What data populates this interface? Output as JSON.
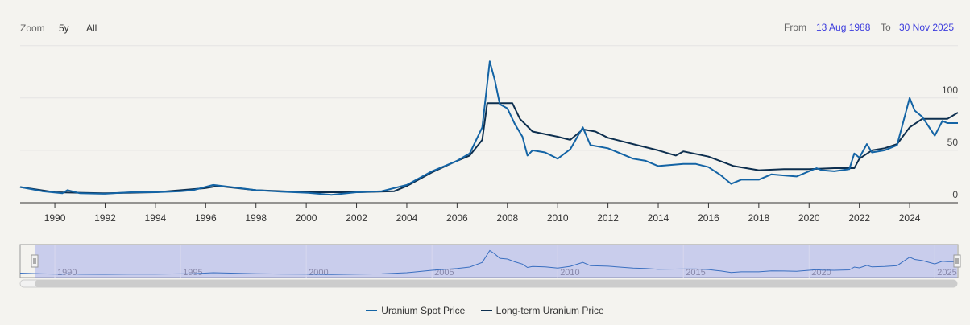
{
  "range_selector": {
    "zoom_label": "Zoom",
    "buttons": [
      "5y",
      "All"
    ],
    "from_label": "From",
    "from_value": "13 Aug 1988",
    "to_label": "To",
    "to_value": "30 Nov 2025"
  },
  "navigator": {
    "labels": [
      "1990",
      "1995",
      "2000",
      "2005",
      "2010",
      "2015",
      "2020",
      "2025"
    ]
  },
  "chart_data": {
    "type": "line",
    "title": "",
    "xlabel": "",
    "ylabel": "",
    "xlim": [
      1988.62,
      2025.92
    ],
    "ylim": [
      0,
      149
    ],
    "x_ticks": [
      "1990",
      "1992",
      "1994",
      "1996",
      "1998",
      "2000",
      "2002",
      "2004",
      "2006",
      "2008",
      "2010",
      "2012",
      "2014",
      "2016",
      "2018",
      "2020",
      "2022",
      "2024"
    ],
    "y_ticks": [
      "0",
      "50",
      "100"
    ],
    "grid": true,
    "legend": "bottom",
    "series": [
      {
        "name": "Uranium Spot Price",
        "color": "#1464a5",
        "x": [
          1988.62,
          1989.5,
          1990.3,
          1990.5,
          1991,
          1992,
          1993,
          1994,
          1995,
          1995.5,
          1996.3,
          1997,
          1998,
          1999,
          2000,
          2001,
          2002,
          2003,
          2004,
          2005,
          2006,
          2006.5,
          2007,
          2007.3,
          2007.5,
          2007.7,
          2008,
          2008.3,
          2008.6,
          2008.8,
          2009,
          2009.5,
          2010,
          2010.5,
          2011,
          2011.3,
          2012,
          2013,
          2013.5,
          2014,
          2015,
          2015.5,
          2016,
          2016.5,
          2016.9,
          2017.3,
          2018,
          2018.5,
          2019,
          2019.5,
          2020.3,
          2020.5,
          2021,
          2021.6,
          2021.8,
          2022,
          2022.3,
          2022.5,
          2023,
          2023.5,
          2024,
          2024.2,
          2024.5,
          2025,
          2025.3,
          2025.5,
          2025.92
        ],
        "y": [
          15,
          11,
          9,
          12,
          9,
          8.5,
          10,
          10,
          11,
          12,
          17,
          15,
          12,
          10.5,
          9.5,
          7.5,
          10,
          11,
          17,
          30,
          40,
          47,
          72,
          135,
          117,
          94,
          90,
          75,
          63,
          45,
          50,
          48,
          42,
          51,
          72,
          55,
          52,
          42,
          40,
          35,
          37,
          37,
          34,
          26,
          18,
          22,
          22,
          27,
          26,
          25,
          33,
          31,
          30,
          32,
          47,
          43,
          56,
          48,
          50,
          55,
          100,
          88,
          82,
          64,
          78,
          76,
          76
        ]
      },
      {
        "name": "Long-term Uranium Price",
        "color": "#0d2f4f",
        "x": [
          1988.62,
          1990,
          1992,
          1994,
          1996,
          1996.5,
          1998,
          2000,
          2002,
          2003.5,
          2004,
          2005,
          2006,
          2006.5,
          2007,
          2007.2,
          2008.2,
          2008.5,
          2009,
          2010,
          2010.5,
          2011,
          2011.5,
          2012,
          2013,
          2014,
          2014.7,
          2015,
          2016,
          2017,
          2018,
          2019,
          2020,
          2021,
          2021.8,
          2022,
          2022.5,
          2023,
          2023.5,
          2024,
          2024.5,
          2025,
          2025.5,
          2025.92
        ],
        "y": [
          15,
          10,
          9,
          10,
          14,
          16,
          12,
          10,
          10,
          11,
          16,
          29,
          40,
          45,
          60,
          95,
          95,
          80,
          68,
          63,
          60,
          70,
          68,
          62,
          56,
          50,
          45,
          49,
          44,
          35,
          31,
          32,
          32,
          33,
          33,
          42,
          50,
          52,
          56,
          72,
          80,
          80,
          80,
          86
        ]
      }
    ]
  }
}
